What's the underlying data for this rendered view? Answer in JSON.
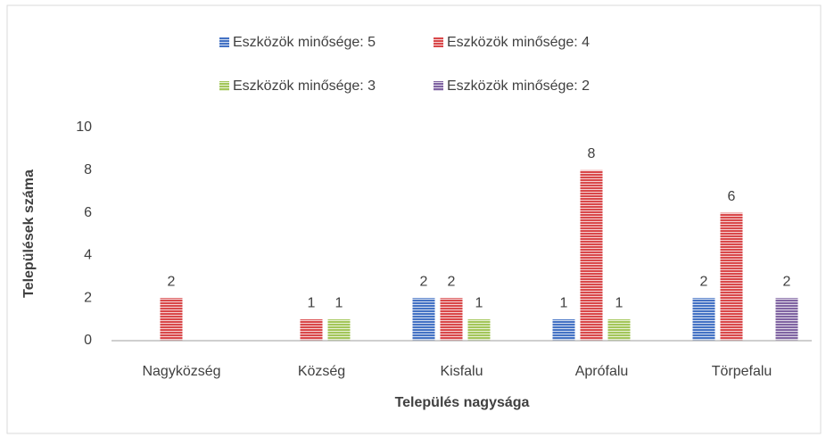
{
  "chart_data": {
    "type": "bar",
    "xlabel": "Település nagysága",
    "ylabel": "Települések száma",
    "categories": [
      "Nagyközség",
      "Község",
      "Kisfalu",
      "Aprófalu",
      "Törpefalu"
    ],
    "series": [
      {
        "name": "Eszközök minősége: 5",
        "color": "#4472c4",
        "values": [
          null,
          null,
          2,
          1,
          2
        ]
      },
      {
        "name": "Eszközök minősége: 4",
        "color": "#d9484a",
        "values": [
          2,
          1,
          2,
          8,
          6
        ]
      },
      {
        "name": "Eszközök minősége: 3",
        "color": "#a3c65a",
        "values": [
          null,
          1,
          1,
          1,
          null
        ]
      },
      {
        "name": "Eszközök minősége: 2",
        "color": "#8064a2",
        "values": [
          null,
          null,
          null,
          null,
          2
        ]
      }
    ],
    "ylim": [
      0,
      10
    ],
    "yticks": [
      0,
      2,
      4,
      6,
      8,
      10
    ],
    "grid": false,
    "legend": "top"
  }
}
